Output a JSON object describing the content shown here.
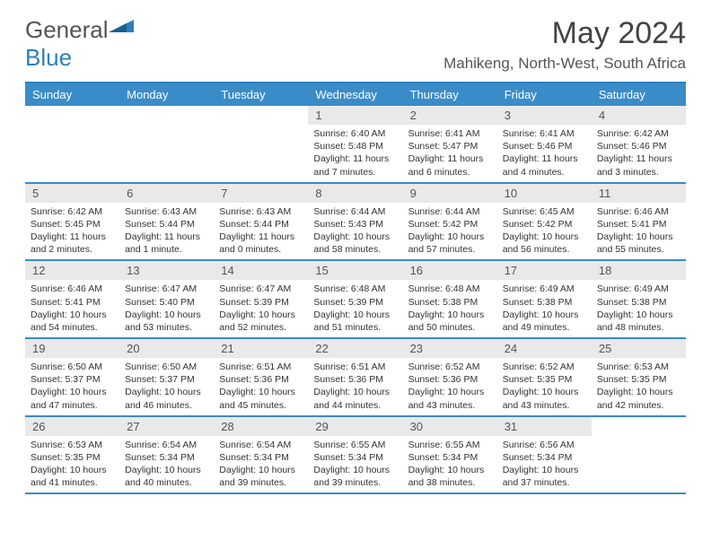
{
  "logo": {
    "prefix": "General",
    "suffix": "Blue"
  },
  "title": "May 2024",
  "location": "Mahikeng, North-West, South Africa",
  "header_bg": "#3a8cc9",
  "daynum_bg": "#e9e9e9",
  "border_color": "#3a8cc9",
  "day_names": [
    "Sunday",
    "Monday",
    "Tuesday",
    "Wednesday",
    "Thursday",
    "Friday",
    "Saturday"
  ],
  "weeks": [
    [
      null,
      null,
      null,
      {
        "n": "1",
        "sr": "6:40 AM",
        "ss": "5:48 PM",
        "dl": "Daylight: 11 hours and 7 minutes."
      },
      {
        "n": "2",
        "sr": "6:41 AM",
        "ss": "5:47 PM",
        "dl": "Daylight: 11 hours and 6 minutes."
      },
      {
        "n": "3",
        "sr": "6:41 AM",
        "ss": "5:46 PM",
        "dl": "Daylight: 11 hours and 4 minutes."
      },
      {
        "n": "4",
        "sr": "6:42 AM",
        "ss": "5:46 PM",
        "dl": "Daylight: 11 hours and 3 minutes."
      }
    ],
    [
      {
        "n": "5",
        "sr": "6:42 AM",
        "ss": "5:45 PM",
        "dl": "Daylight: 11 hours and 2 minutes."
      },
      {
        "n": "6",
        "sr": "6:43 AM",
        "ss": "5:44 PM",
        "dl": "Daylight: 11 hours and 1 minute."
      },
      {
        "n": "7",
        "sr": "6:43 AM",
        "ss": "5:44 PM",
        "dl": "Daylight: 11 hours and 0 minutes."
      },
      {
        "n": "8",
        "sr": "6:44 AM",
        "ss": "5:43 PM",
        "dl": "Daylight: 10 hours and 58 minutes."
      },
      {
        "n": "9",
        "sr": "6:44 AM",
        "ss": "5:42 PM",
        "dl": "Daylight: 10 hours and 57 minutes."
      },
      {
        "n": "10",
        "sr": "6:45 AM",
        "ss": "5:42 PM",
        "dl": "Daylight: 10 hours and 56 minutes."
      },
      {
        "n": "11",
        "sr": "6:46 AM",
        "ss": "5:41 PM",
        "dl": "Daylight: 10 hours and 55 minutes."
      }
    ],
    [
      {
        "n": "12",
        "sr": "6:46 AM",
        "ss": "5:41 PM",
        "dl": "Daylight: 10 hours and 54 minutes."
      },
      {
        "n": "13",
        "sr": "6:47 AM",
        "ss": "5:40 PM",
        "dl": "Daylight: 10 hours and 53 minutes."
      },
      {
        "n": "14",
        "sr": "6:47 AM",
        "ss": "5:39 PM",
        "dl": "Daylight: 10 hours and 52 minutes."
      },
      {
        "n": "15",
        "sr": "6:48 AM",
        "ss": "5:39 PM",
        "dl": "Daylight: 10 hours and 51 minutes."
      },
      {
        "n": "16",
        "sr": "6:48 AM",
        "ss": "5:38 PM",
        "dl": "Daylight: 10 hours and 50 minutes."
      },
      {
        "n": "17",
        "sr": "6:49 AM",
        "ss": "5:38 PM",
        "dl": "Daylight: 10 hours and 49 minutes."
      },
      {
        "n": "18",
        "sr": "6:49 AM",
        "ss": "5:38 PM",
        "dl": "Daylight: 10 hours and 48 minutes."
      }
    ],
    [
      {
        "n": "19",
        "sr": "6:50 AM",
        "ss": "5:37 PM",
        "dl": "Daylight: 10 hours and 47 minutes."
      },
      {
        "n": "20",
        "sr": "6:50 AM",
        "ss": "5:37 PM",
        "dl": "Daylight: 10 hours and 46 minutes."
      },
      {
        "n": "21",
        "sr": "6:51 AM",
        "ss": "5:36 PM",
        "dl": "Daylight: 10 hours and 45 minutes."
      },
      {
        "n": "22",
        "sr": "6:51 AM",
        "ss": "5:36 PM",
        "dl": "Daylight: 10 hours and 44 minutes."
      },
      {
        "n": "23",
        "sr": "6:52 AM",
        "ss": "5:36 PM",
        "dl": "Daylight: 10 hours and 43 minutes."
      },
      {
        "n": "24",
        "sr": "6:52 AM",
        "ss": "5:35 PM",
        "dl": "Daylight: 10 hours and 43 minutes."
      },
      {
        "n": "25",
        "sr": "6:53 AM",
        "ss": "5:35 PM",
        "dl": "Daylight: 10 hours and 42 minutes."
      }
    ],
    [
      {
        "n": "26",
        "sr": "6:53 AM",
        "ss": "5:35 PM",
        "dl": "Daylight: 10 hours and 41 minutes."
      },
      {
        "n": "27",
        "sr": "6:54 AM",
        "ss": "5:34 PM",
        "dl": "Daylight: 10 hours and 40 minutes."
      },
      {
        "n": "28",
        "sr": "6:54 AM",
        "ss": "5:34 PM",
        "dl": "Daylight: 10 hours and 39 minutes."
      },
      {
        "n": "29",
        "sr": "6:55 AM",
        "ss": "5:34 PM",
        "dl": "Daylight: 10 hours and 39 minutes."
      },
      {
        "n": "30",
        "sr": "6:55 AM",
        "ss": "5:34 PM",
        "dl": "Daylight: 10 hours and 38 minutes."
      },
      {
        "n": "31",
        "sr": "6:56 AM",
        "ss": "5:34 PM",
        "dl": "Daylight: 10 hours and 37 minutes."
      },
      null
    ]
  ]
}
